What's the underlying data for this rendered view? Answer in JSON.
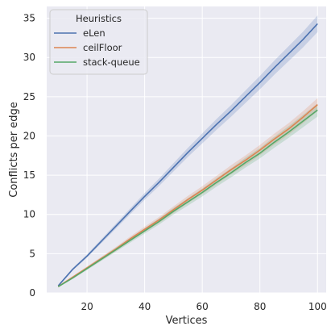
{
  "chart_data": {
    "type": "line",
    "xlabel": "Vertices",
    "ylabel": "Conflicts per edge",
    "xlim": [
      6,
      103
    ],
    "ylim": [
      0,
      36.5
    ],
    "xticks": [
      20,
      40,
      60,
      80,
      100
    ],
    "yticks": [
      0,
      5,
      10,
      15,
      20,
      25,
      30,
      35
    ],
    "grid": true,
    "legend": {
      "title": "Heuristics",
      "placement": "top-left"
    },
    "x": [
      10,
      15,
      20,
      25,
      30,
      35,
      40,
      45,
      50,
      55,
      60,
      65,
      70,
      75,
      80,
      85,
      90,
      95,
      100
    ],
    "series": [
      {
        "name": "eLen",
        "color": "#4c72b0",
        "values": [
          0.9,
          3.0,
          4.7,
          6.6,
          8.5,
          10.4,
          12.3,
          14.1,
          16.0,
          17.9,
          19.7,
          21.5,
          23.2,
          25.0,
          26.8,
          28.7,
          30.5,
          32.3,
          34.3
        ],
        "band": 0.6
      },
      {
        "name": "ceilFloor",
        "color": "#dd8452",
        "values": [
          0.8,
          2.0,
          3.2,
          4.4,
          5.6,
          6.9,
          8.1,
          9.3,
          10.6,
          11.9,
          13.1,
          14.4,
          15.7,
          16.9,
          18.2,
          19.6,
          20.9,
          22.4,
          24.0
        ],
        "band": 0.45
      },
      {
        "name": "stack-queue",
        "color": "#55a868",
        "values": [
          0.8,
          1.9,
          3.1,
          4.3,
          5.5,
          6.7,
          7.9,
          9.1,
          10.4,
          11.6,
          12.8,
          14.1,
          15.3,
          16.6,
          17.8,
          19.2,
          20.5,
          21.9,
          23.3
        ],
        "band": 0.45
      }
    ]
  },
  "style": {
    "plot_background": "#eaeaf2",
    "grid_color": "#ffffff",
    "text_color": "#262626"
  }
}
